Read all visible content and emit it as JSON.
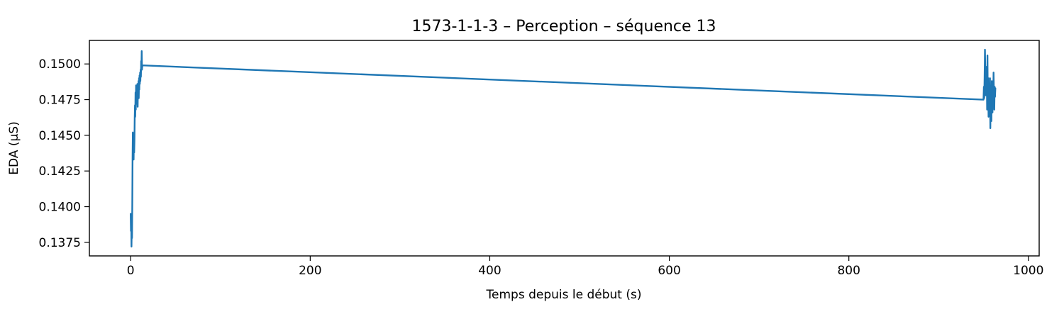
{
  "chart_data": {
    "type": "line",
    "title": "1573-1-1-3 – Perception – séquence 13",
    "xlabel": "Temps depuis le début (s)",
    "ylabel": "EDA (µS)",
    "xlim": [
      -46,
      1012
    ],
    "ylim": [
      0.13655,
      0.15165
    ],
    "xticks": [
      0,
      200,
      400,
      600,
      800,
      1000
    ],
    "xtick_labels": [
      "0",
      "200",
      "400",
      "600",
      "800",
      "1000"
    ],
    "yticks": [
      0.1375,
      0.14,
      0.1425,
      0.145,
      0.1475,
      0.15
    ],
    "ytick_labels": [
      "0.1375",
      "0.1400",
      "0.1425",
      "0.1450",
      "0.1475",
      "0.1500"
    ],
    "grid": false,
    "legend": "none",
    "series": [
      {
        "color": "#1f77b4",
        "x": [
          0.0,
          0.3,
          0.6,
          0.9,
          1.2,
          1.5,
          1.8,
          2.1,
          2.4,
          2.7,
          3.0,
          3.3,
          3.6,
          3.9,
          4.2,
          4.5,
          4.8,
          5.1,
          5.4,
          5.7,
          6.0,
          6.3,
          6.6,
          6.9,
          7.2,
          7.5,
          7.8,
          8.1,
          8.4,
          8.7,
          9.0,
          9.3,
          9.6,
          9.9,
          10.2,
          10.5,
          10.8,
          11.1,
          11.4,
          11.7,
          12.0,
          12.3,
          12.6,
          13.0,
          950.0,
          950.4,
          950.8,
          951.2,
          951.6,
          952.0,
          952.4,
          952.8,
          953.2,
          953.6,
          954.0,
          954.4,
          954.8,
          955.2,
          955.6,
          956.0,
          956.4,
          956.8,
          957.2,
          957.6,
          958.0,
          958.4,
          958.8,
          959.2,
          959.6,
          960.0,
          960.4,
          960.8,
          961.2,
          961.6,
          962.0,
          962.4,
          962.8,
          963.2
        ],
        "y": [
          0.1395,
          0.1383,
          0.1392,
          0.1372,
          0.1386,
          0.1378,
          0.1402,
          0.1434,
          0.1452,
          0.144,
          0.1448,
          0.1433,
          0.1451,
          0.1438,
          0.1446,
          0.1462,
          0.1471,
          0.1463,
          0.148,
          0.1468,
          0.1485,
          0.1474,
          0.1478,
          0.1482,
          0.1472,
          0.1486,
          0.147,
          0.1484,
          0.1478,
          0.1488,
          0.1476,
          0.149,
          0.1482,
          0.1492,
          0.1486,
          0.1494,
          0.1488,
          0.1496,
          0.1491,
          0.1502,
          0.1498,
          0.1509,
          0.1496,
          0.1499,
          0.1475,
          0.1484,
          0.1476,
          0.1491,
          0.151,
          0.1493,
          0.1478,
          0.1498,
          0.1482,
          0.1495,
          0.1468,
          0.1506,
          0.1472,
          0.149,
          0.1463,
          0.1486,
          0.1478,
          0.1465,
          0.149,
          0.1455,
          0.148,
          0.1474,
          0.146,
          0.1488,
          0.1472,
          0.1466,
          0.1485,
          0.1476,
          0.1494,
          0.1479,
          0.1468,
          0.1484,
          0.1477,
          0.1483
        ]
      }
    ]
  }
}
